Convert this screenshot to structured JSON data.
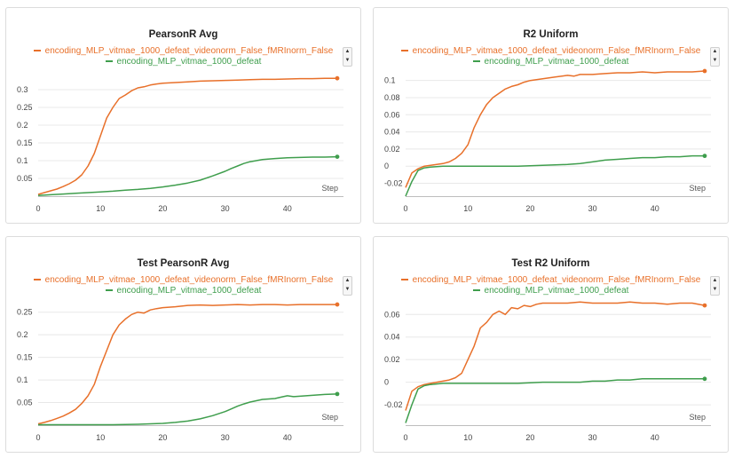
{
  "colors": {
    "orange": "#e8702a",
    "green": "#3f9e4d"
  },
  "icons": {
    "legend_scroll": "up-down-arrow-icon"
  },
  "legend": {
    "up_glyph": "▲",
    "down_glyph": "▼"
  },
  "chart_data": [
    {
      "type": "line",
      "title": "PearsonR Avg",
      "xlabel": "Step",
      "ylabel": "",
      "xlim": [
        0,
        49
      ],
      "ylim": [
        0,
        0.35
      ],
      "xticks": [
        0,
        10,
        20,
        30,
        40
      ],
      "yticks": [
        0.05,
        0.1,
        0.15,
        0.2,
        0.25,
        0.3
      ],
      "ytick_labels": [
        "0.05",
        "0.1",
        "0.15",
        "0.2",
        "0.25",
        "0.3"
      ],
      "grid": true,
      "legend_position": "top-center",
      "series": [
        {
          "name": "encoding_MLP_vitmae_1000_defeat_videonorm_False_fMRInorm_False",
          "color": "#e8702a",
          "x": [
            0,
            1,
            2,
            3,
            4,
            5,
            6,
            7,
            8,
            9,
            10,
            11,
            12,
            13,
            14,
            15,
            16,
            17,
            18,
            19,
            20,
            22,
            24,
            26,
            28,
            30,
            32,
            34,
            36,
            38,
            40,
            42,
            44,
            46,
            48
          ],
          "y": [
            0.005,
            0.01,
            0.015,
            0.02,
            0.027,
            0.035,
            0.045,
            0.06,
            0.085,
            0.12,
            0.17,
            0.22,
            0.25,
            0.275,
            0.285,
            0.297,
            0.305,
            0.308,
            0.313,
            0.316,
            0.318,
            0.32,
            0.322,
            0.324,
            0.325,
            0.326,
            0.327,
            0.328,
            0.329,
            0.329,
            0.33,
            0.331,
            0.331,
            0.332,
            0.332
          ]
        },
        {
          "name": "encoding_MLP_vitmae_1000_defeat",
          "color": "#3f9e4d",
          "x": [
            0,
            2,
            4,
            6,
            8,
            10,
            12,
            14,
            16,
            18,
            20,
            22,
            24,
            26,
            28,
            30,
            31,
            32,
            33,
            34,
            35,
            36,
            38,
            40,
            42,
            44,
            46,
            48
          ],
          "y": [
            0.002,
            0.004,
            0.006,
            0.008,
            0.01,
            0.012,
            0.014,
            0.017,
            0.019,
            0.022,
            0.026,
            0.031,
            0.037,
            0.045,
            0.057,
            0.07,
            0.078,
            0.085,
            0.092,
            0.097,
            0.1,
            0.103,
            0.106,
            0.108,
            0.109,
            0.11,
            0.11,
            0.111
          ]
        }
      ]
    },
    {
      "type": "line",
      "title": "R2 Uniform",
      "xlabel": "Step",
      "ylabel": "",
      "xlim": [
        0,
        49
      ],
      "ylim": [
        -0.035,
        0.11
      ],
      "xticks": [
        0,
        10,
        20,
        30,
        40
      ],
      "yticks": [
        -0.02,
        0,
        0.02,
        0.04,
        0.06,
        0.08,
        0.1
      ],
      "ytick_labels": [
        "-0.02",
        "0",
        "0.02",
        "0.04",
        "0.06",
        "0.08",
        "0.1"
      ],
      "grid": true,
      "legend_position": "top-center",
      "series": [
        {
          "name": "encoding_MLP_vitmae_1000_defeat_videonorm_False_fMRInorm_False",
          "color": "#e8702a",
          "x": [
            0,
            1,
            2,
            3,
            4,
            5,
            6,
            7,
            8,
            9,
            10,
            11,
            12,
            13,
            14,
            15,
            16,
            17,
            18,
            19,
            20,
            22,
            24,
            26,
            27,
            28,
            30,
            32,
            34,
            36,
            38,
            40,
            42,
            44,
            46,
            48
          ],
          "y": [
            -0.025,
            -0.008,
            -0.003,
            0,
            0.001,
            0.002,
            0.003,
            0.005,
            0.009,
            0.015,
            0.025,
            0.045,
            0.06,
            0.072,
            0.08,
            0.085,
            0.09,
            0.093,
            0.095,
            0.098,
            0.1,
            0.102,
            0.104,
            0.106,
            0.105,
            0.107,
            0.107,
            0.108,
            0.109,
            0.109,
            0.11,
            0.109,
            0.11,
            0.11,
            0.11,
            0.111
          ]
        },
        {
          "name": "encoding_MLP_vitmae_1000_defeat",
          "color": "#3f9e4d",
          "x": [
            0,
            1,
            2,
            3,
            4,
            6,
            8,
            10,
            14,
            18,
            22,
            26,
            28,
            30,
            32,
            34,
            36,
            38,
            40,
            42,
            44,
            46,
            48
          ],
          "y": [
            -0.035,
            -0.018,
            -0.005,
            -0.002,
            -0.001,
            0,
            0,
            0,
            0,
            0,
            0.001,
            0.002,
            0.003,
            0.005,
            0.007,
            0.008,
            0.009,
            0.01,
            0.01,
            0.011,
            0.011,
            0.012,
            0.012
          ]
        }
      ]
    },
    {
      "type": "line",
      "title": "Test PearsonR Avg",
      "xlabel": "Step",
      "ylabel": "",
      "xlim": [
        0,
        49
      ],
      "ylim": [
        0,
        0.275
      ],
      "xticks": [
        0,
        10,
        20,
        30,
        40
      ],
      "yticks": [
        0.05,
        0.1,
        0.15,
        0.2,
        0.25
      ],
      "ytick_labels": [
        "0.05",
        "0.1",
        "0.15",
        "0.2",
        "0.25"
      ],
      "grid": true,
      "legend_position": "top-center",
      "series": [
        {
          "name": "encoding_MLP_vitmae_1000_defeat_videonorm_False_fMRInorm_False",
          "color": "#e8702a",
          "x": [
            0,
            1,
            2,
            3,
            4,
            5,
            6,
            7,
            8,
            9,
            10,
            11,
            12,
            13,
            14,
            15,
            16,
            17,
            18,
            19,
            20,
            22,
            24,
            26,
            28,
            30,
            32,
            34,
            36,
            38,
            40,
            42,
            44,
            46,
            48
          ],
          "y": [
            0.003,
            0.006,
            0.01,
            0.015,
            0.02,
            0.027,
            0.035,
            0.048,
            0.065,
            0.09,
            0.13,
            0.165,
            0.2,
            0.222,
            0.235,
            0.245,
            0.25,
            0.248,
            0.255,
            0.258,
            0.26,
            0.262,
            0.265,
            0.266,
            0.265,
            0.266,
            0.267,
            0.266,
            0.267,
            0.267,
            0.266,
            0.267,
            0.267,
            0.267,
            0.267
          ]
        },
        {
          "name": "encoding_MLP_vitmae_1000_defeat",
          "color": "#3f9e4d",
          "x": [
            0,
            4,
            8,
            12,
            16,
            20,
            22,
            24,
            26,
            28,
            30,
            31,
            32,
            33,
            34,
            35,
            36,
            37,
            38,
            39,
            40,
            41,
            42,
            44,
            46,
            48
          ],
          "y": [
            0.001,
            0.001,
            0.001,
            0.001,
            0.002,
            0.004,
            0.006,
            0.009,
            0.014,
            0.021,
            0.03,
            0.036,
            0.042,
            0.047,
            0.051,
            0.054,
            0.057,
            0.058,
            0.059,
            0.062,
            0.065,
            0.063,
            0.064,
            0.066,
            0.068,
            0.069
          ]
        }
      ]
    },
    {
      "type": "line",
      "title": "Test R2 Uniform",
      "xlabel": "Step",
      "ylabel": "",
      "xlim": [
        0,
        49
      ],
      "ylim": [
        -0.038,
        0.072
      ],
      "xticks": [
        0,
        10,
        20,
        30,
        40
      ],
      "yticks": [
        -0.02,
        0,
        0.02,
        0.04,
        0.06
      ],
      "ytick_labels": [
        "-0.02",
        "0",
        "0.02",
        "0.04",
        "0.06"
      ],
      "grid": true,
      "legend_position": "top-center",
      "series": [
        {
          "name": "encoding_MLP_vitmae_1000_defeat_videonorm_False_fMRInorm_False",
          "color": "#e8702a",
          "x": [
            0,
            1,
            2,
            3,
            4,
            5,
            6,
            7,
            8,
            9,
            10,
            11,
            12,
            13,
            14,
            15,
            16,
            17,
            18,
            19,
            20,
            21,
            22,
            24,
            26,
            28,
            30,
            32,
            34,
            36,
            38,
            40,
            42,
            44,
            46,
            48
          ],
          "y": [
            -0.025,
            -0.008,
            -0.004,
            -0.002,
            -0.001,
            0,
            0.001,
            0.002,
            0.004,
            0.008,
            0.02,
            0.032,
            0.048,
            0.053,
            0.06,
            0.063,
            0.06,
            0.066,
            0.065,
            0.068,
            0.067,
            0.069,
            0.07,
            0.07,
            0.07,
            0.071,
            0.07,
            0.07,
            0.07,
            0.071,
            0.07,
            0.07,
            0.069,
            0.07,
            0.07,
            0.068
          ]
        },
        {
          "name": "encoding_MLP_vitmae_1000_defeat",
          "color": "#3f9e4d",
          "x": [
            0,
            1,
            2,
            3,
            4,
            6,
            8,
            10,
            14,
            18,
            22,
            26,
            28,
            30,
            32,
            34,
            36,
            38,
            40,
            42,
            44,
            46,
            48
          ],
          "y": [
            -0.036,
            -0.02,
            -0.006,
            -0.003,
            -0.002,
            -0.001,
            -0.001,
            -0.001,
            -0.001,
            -0.001,
            0,
            0,
            0,
            0.001,
            0.001,
            0.002,
            0.002,
            0.003,
            0.003,
            0.003,
            0.003,
            0.003,
            0.003
          ]
        }
      ]
    }
  ]
}
